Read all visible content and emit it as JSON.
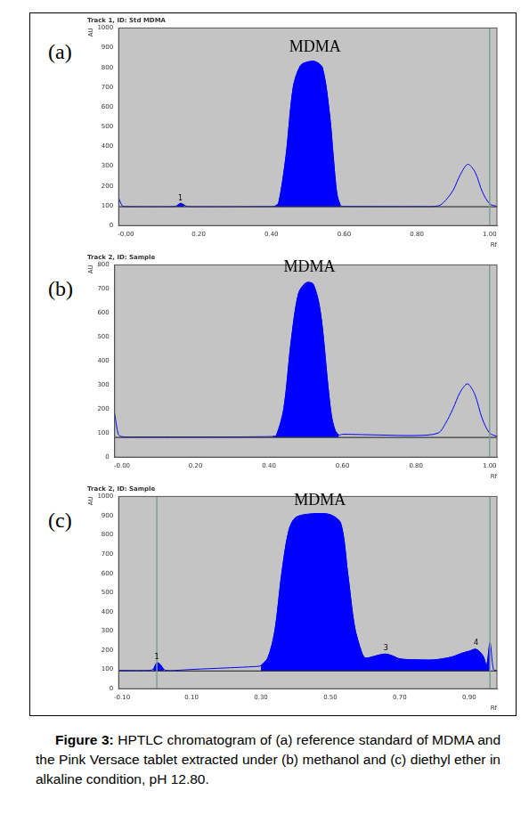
{
  "chart_data": [
    {
      "type": "line",
      "label": "(a)",
      "title": "Track 1, ID: Std MDMA",
      "x_label": "Rf",
      "y_label": "AU",
      "x": [
        -0.02,
        -0.01,
        0.0,
        0.05,
        0.1,
        0.13,
        0.14,
        0.15,
        0.16,
        0.17,
        0.2,
        0.3,
        0.38,
        0.41,
        0.42,
        0.44,
        0.46,
        0.48,
        0.5,
        0.52,
        0.54,
        0.56,
        0.57,
        0.58,
        0.59,
        0.6,
        0.7,
        0.8,
        0.86,
        0.88,
        0.9,
        0.92,
        0.94,
        0.96,
        0.98,
        1.0,
        1.02
      ],
      "series": [
        {
          "type": "line",
          "color": "#3a3a3a",
          "values": [
            95,
            95,
            95,
            95,
            95,
            95,
            95,
            95,
            95,
            95,
            95,
            95,
            95,
            95,
            95,
            95,
            95,
            95,
            95,
            95,
            95,
            95,
            95,
            95,
            95,
            95,
            95,
            95,
            95,
            95,
            95,
            95,
            95,
            95,
            95,
            95,
            95
          ]
        },
        {
          "type": "area",
          "color": "#0000ff",
          "values": [
            null,
            null,
            null,
            null,
            null,
            null,
            100,
            112,
            104,
            null,
            null,
            null,
            null,
            98,
            115,
            350,
            700,
            810,
            828,
            830,
            800,
            560,
            350,
            160,
            100,
            null,
            null,
            null,
            null,
            null,
            null,
            null,
            null,
            null,
            null,
            null,
            null
          ]
        },
        {
          "type": "line",
          "color": "#0000ff",
          "values": [
            140,
            100,
            96,
            95,
            95,
            96,
            100,
            112,
            104,
            96,
            95,
            95,
            96,
            98,
            115,
            350,
            700,
            810,
            828,
            830,
            800,
            560,
            350,
            160,
            100,
            97,
            96,
            96,
            100,
            130,
            180,
            260,
            310,
            270,
            170,
            110,
            97
          ]
        }
      ],
      "xlim": [
        -0.02,
        1.02
      ],
      "xticks": [
        {
          "value": 0,
          "label": "-0.00"
        },
        {
          "value": 0.2,
          "label": "0.20"
        },
        {
          "value": 0.4,
          "label": "0.40"
        },
        {
          "value": 0.6,
          "label": "0.60"
        },
        {
          "value": 0.8,
          "label": "0.80"
        },
        {
          "value": 1,
          "label": "1.00"
        }
      ],
      "ylim": [
        0,
        1000
      ],
      "yticks": [
        0,
        100,
        200,
        300,
        400,
        500,
        600,
        700,
        800,
        900,
        1000
      ],
      "vlines": [
        1.0
      ],
      "annotations": [
        {
          "text": "MDMA",
          "x": 0.52,
          "y": 860
        },
        {
          "text": "1",
          "x": 0.15,
          "y": 120
        }
      ],
      "grid": false
    },
    {
      "type": "line",
      "label": "(b)",
      "title": "Track 2, ID: Sample",
      "x_label": "Rf",
      "y_label": "AU",
      "x": [
        -0.02,
        -0.01,
        0.0,
        0.05,
        0.1,
        0.13,
        0.14,
        0.15,
        0.16,
        0.17,
        0.2,
        0.3,
        0.38,
        0.41,
        0.42,
        0.44,
        0.46,
        0.48,
        0.5,
        0.52,
        0.54,
        0.56,
        0.57,
        0.58,
        0.59,
        0.6,
        0.7,
        0.8,
        0.86,
        0.88,
        0.9,
        0.92,
        0.94,
        0.96,
        0.98,
        1.0,
        1.02
      ],
      "series": [
        {
          "type": "line",
          "color": "#3a3a3a",
          "values": [
            82,
            82,
            82,
            82,
            82,
            82,
            82,
            82,
            82,
            82,
            82,
            82,
            82,
            82,
            82,
            82,
            82,
            82,
            82,
            82,
            82,
            82,
            82,
            82,
            82,
            82,
            82,
            82,
            82,
            82,
            82,
            82,
            82,
            82,
            82,
            82,
            82
          ]
        },
        {
          "type": "area",
          "color": "#0000ff",
          "values": [
            null,
            null,
            null,
            null,
            null,
            null,
            null,
            null,
            null,
            null,
            null,
            null,
            null,
            86,
            90,
            200,
            480,
            680,
            725,
            720,
            600,
            300,
            170,
            110,
            92,
            null,
            null,
            null,
            null,
            null,
            null,
            null,
            null,
            null,
            null,
            null,
            null
          ]
        },
        {
          "type": "line",
          "color": "#0000ff",
          "values": [
            180,
            95,
            85,
            84,
            84,
            84,
            84,
            84,
            84,
            84,
            84,
            84,
            85,
            86,
            90,
            200,
            480,
            680,
            725,
            720,
            600,
            300,
            170,
            110,
            92,
            95,
            92,
            90,
            100,
            140,
            200,
            270,
            305,
            260,
            160,
            100,
            86
          ]
        }
      ],
      "xlim": [
        -0.02,
        1.02
      ],
      "xticks": [
        {
          "value": 0,
          "label": "-0.00"
        },
        {
          "value": 0.2,
          "label": "0.20"
        },
        {
          "value": 0.4,
          "label": "0.40"
        },
        {
          "value": 0.6,
          "label": "0.60"
        },
        {
          "value": 0.8,
          "label": "0.80"
        },
        {
          "value": 1,
          "label": "1.00"
        }
      ],
      "ylim": [
        0,
        800
      ],
      "yticks": [
        0,
        100,
        200,
        300,
        400,
        500,
        600,
        700,
        800
      ],
      "vlines": [
        1.0
      ],
      "annotations": [
        {
          "text": "MDMA",
          "x": 0.51,
          "y": 755
        }
      ],
      "grid": false
    },
    {
      "type": "line",
      "label": "(c)",
      "title": "Track 2, ID: Sample",
      "x_label": "Rf",
      "y_label": "AU",
      "x": [
        -0.11,
        -0.08,
        -0.04,
        -0.01,
        0.0,
        0.01,
        0.02,
        0.03,
        0.05,
        0.1,
        0.2,
        0.25,
        0.28,
        0.3,
        0.32,
        0.34,
        0.36,
        0.38,
        0.4,
        0.45,
        0.5,
        0.53,
        0.55,
        0.57,
        0.59,
        0.6,
        0.62,
        0.64,
        0.66,
        0.68,
        0.7,
        0.75,
        0.8,
        0.85,
        0.88,
        0.9,
        0.92,
        0.94,
        0.95,
        0.96,
        0.97,
        0.98
      ],
      "series": [
        {
          "type": "line",
          "color": "#3a3a3a",
          "values": [
            92,
            92,
            92,
            92,
            92,
            92,
            92,
            92,
            92,
            92,
            92,
            92,
            92,
            92,
            92,
            92,
            92,
            92,
            92,
            92,
            92,
            92,
            92,
            92,
            92,
            92,
            92,
            92,
            92,
            92,
            92,
            92,
            92,
            92,
            92,
            92,
            92,
            92,
            92,
            92,
            92,
            92
          ]
        },
        {
          "type": "area",
          "color": "#0000ff",
          "values": [
            null,
            null,
            null,
            100,
            135,
            125,
            100,
            null,
            null,
            null,
            null,
            null,
            null,
            120,
            160,
            300,
            600,
            820,
            890,
            910,
            905,
            860,
            600,
            320,
            190,
            160,
            165,
            175,
            180,
            170,
            155,
            150,
            150,
            165,
            185,
            195,
            205,
            170,
            120,
            240,
            null,
            null
          ]
        },
        {
          "type": "line",
          "color": "#0000ff",
          "values": [
            95,
            95,
            95,
            100,
            135,
            125,
            100,
            95,
            95,
            100,
            108,
            112,
            115,
            120,
            160,
            300,
            600,
            820,
            890,
            910,
            905,
            860,
            600,
            320,
            190,
            160,
            165,
            175,
            180,
            170,
            155,
            150,
            150,
            165,
            185,
            195,
            205,
            170,
            120,
            240,
            100,
            95
          ]
        }
      ],
      "xlim": [
        -0.11,
        0.98
      ],
      "xticks": [
        {
          "value": -0.1,
          "label": "-0.10"
        },
        {
          "value": 0.1,
          "label": "0.10"
        },
        {
          "value": 0.3,
          "label": "0.30"
        },
        {
          "value": 0.5,
          "label": "0.50"
        },
        {
          "value": 0.7,
          "label": "0.70"
        },
        {
          "value": 0.9,
          "label": "0.90"
        }
      ],
      "ylim": [
        0,
        1000
      ],
      "yticks": [
        0,
        100,
        200,
        300,
        400,
        500,
        600,
        700,
        800,
        900,
        1000
      ],
      "vlines": [
        0.0,
        0.96
      ],
      "annotations": [
        {
          "text": "MDMA",
          "x": 0.47,
          "y": 935
        },
        {
          "text": "1",
          "x": 0.0,
          "y": 145
        },
        {
          "text": "3",
          "x": 0.66,
          "y": 192
        },
        {
          "text": "4",
          "x": 0.92,
          "y": 218
        }
      ],
      "grid": false
    }
  ],
  "caption": {
    "label": "Figure 3:",
    "text": "HPTLC chromatogram of (a) reference standard of MDMA and the Pink Versace tablet extracted under (b) methanol and (c) diethyl ether in alkaline condition, pH 12.80."
  }
}
